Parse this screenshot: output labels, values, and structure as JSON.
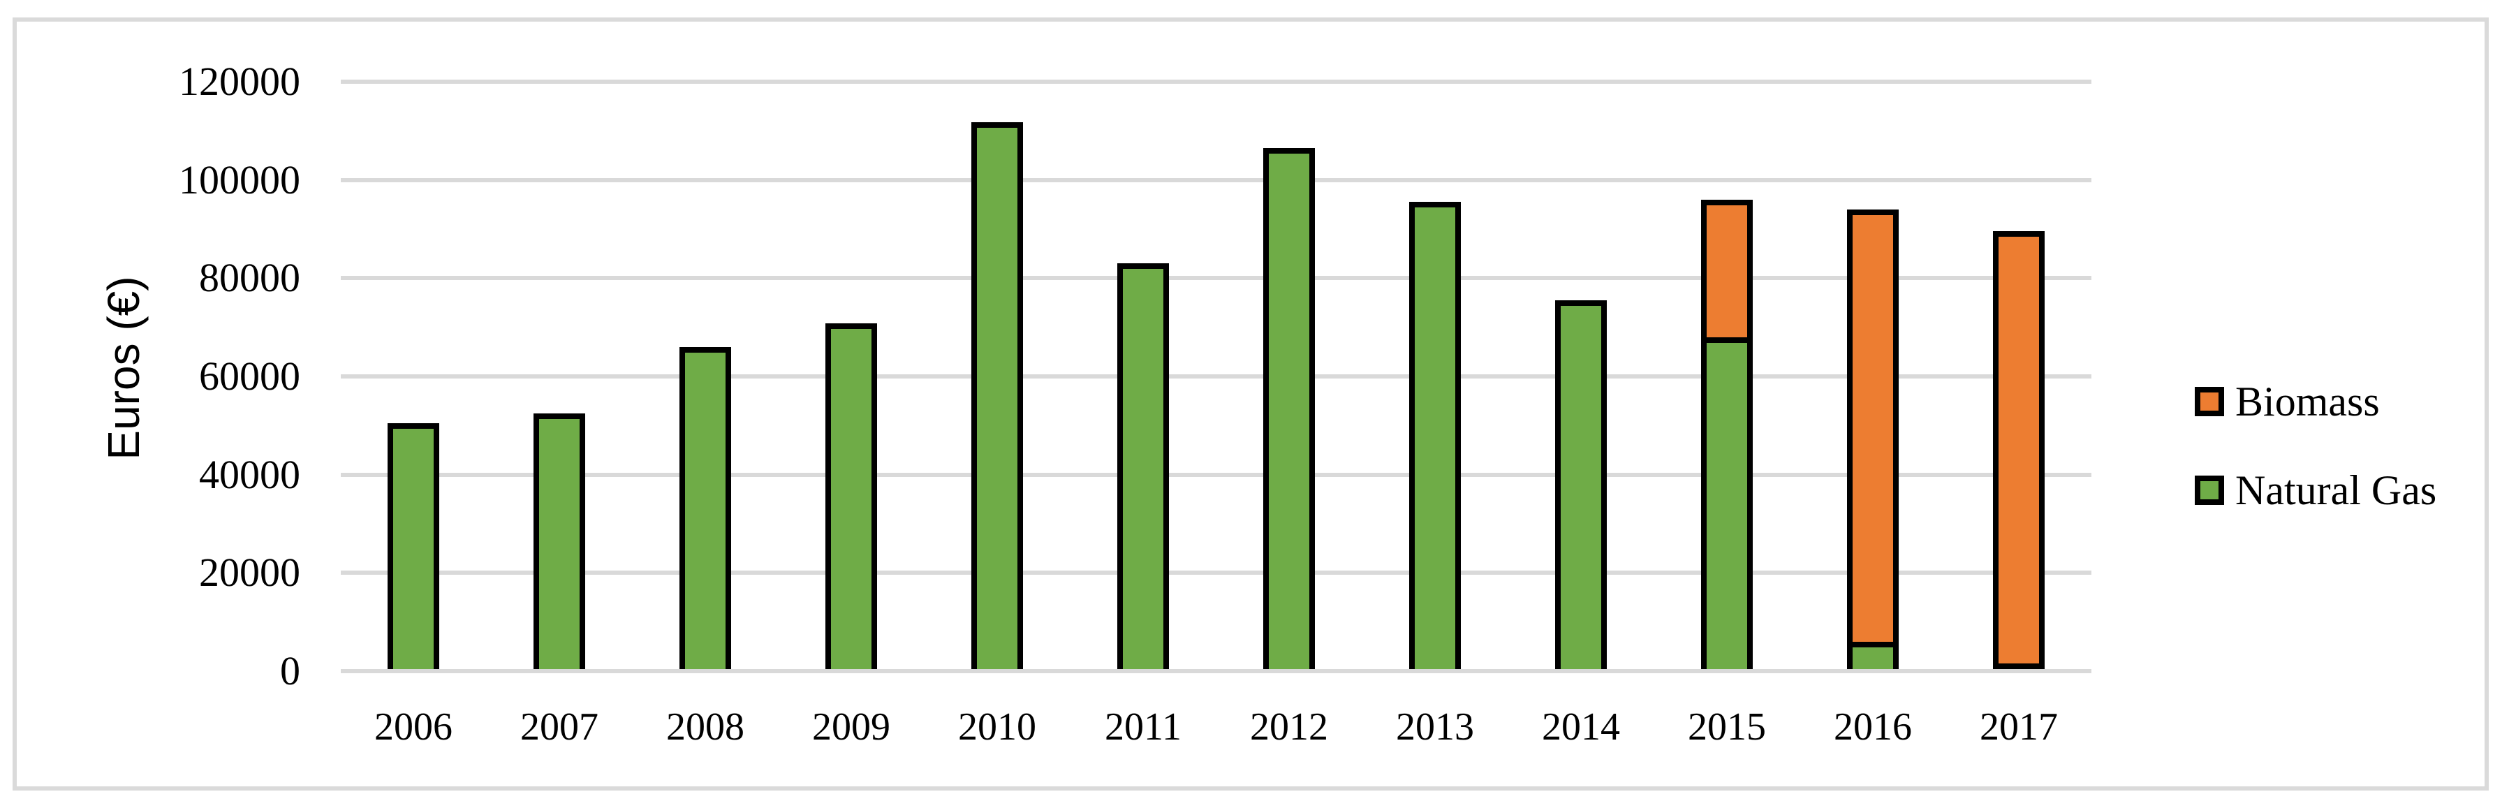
{
  "chart_data": {
    "type": "bar",
    "stacked": true,
    "categories": [
      "2006",
      "2007",
      "2008",
      "2009",
      "2010",
      "2011",
      "2012",
      "2013",
      "2014",
      "2015",
      "2016",
      "2017"
    ],
    "series": [
      {
        "name": "Biomass",
        "color": "#ED7D31",
        "values": [
          0,
          0,
          0,
          0,
          0,
          0,
          0,
          0,
          0,
          28000,
          88000,
          88000
        ]
      },
      {
        "name": "Natural Gas",
        "color": "#6FAC47",
        "values": [
          50500,
          52500,
          66000,
          70800,
          111800,
          83000,
          106500,
          95500,
          75500,
          68000,
          6000,
          1500
        ]
      }
    ],
    "stack_order_bottom_to_top": [
      "Natural Gas",
      "Biomass"
    ],
    "xlabel": "",
    "ylabel": "Euros (€)",
    "ylim": [
      0,
      120000
    ],
    "ytick_step": 20000,
    "yticks": [
      "0",
      "20000",
      "40000",
      "60000",
      "80000",
      "100000",
      "120000"
    ],
    "grid": true,
    "legend_position": "right",
    "bar_border_color": "#000000",
    "gridline_color": "#D9D9D9",
    "frame_color": "#DADADA"
  },
  "legend": {
    "items": [
      {
        "label": "Biomass",
        "color": "#ED7D31"
      },
      {
        "label": "Natural Gas",
        "color": "#6FAC47"
      }
    ]
  }
}
